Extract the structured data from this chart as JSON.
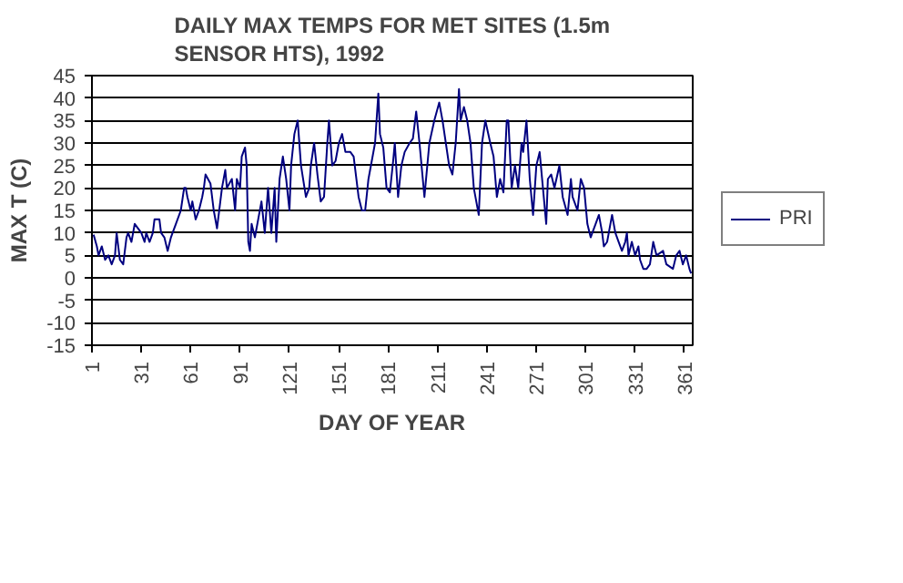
{
  "chart_data": {
    "type": "line",
    "title": "DAILY MAX TEMPS FOR MET SITES (1.5m\nSENSOR HTS), 1992",
    "xlabel": "DAY OF YEAR",
    "ylabel": "MAX T (C)",
    "xlim": [
      1,
      366
    ],
    "xticks": [
      1,
      31,
      61,
      91,
      121,
      151,
      181,
      211,
      241,
      271,
      301,
      331,
      361
    ],
    "ylim": [
      -15,
      45
    ],
    "yticks": [
      -15,
      -10,
      -5,
      0,
      5,
      10,
      15,
      20,
      25,
      30,
      35,
      40,
      45
    ],
    "grid": "y",
    "legend": "right",
    "marker": "none",
    "line_style": "solid",
    "series": [
      {
        "name": "PRI",
        "color": "#000080",
        "x": [
          2,
          4,
          5,
          7,
          9,
          11,
          13,
          15,
          16,
          18,
          20,
          22,
          23,
          25,
          27,
          31,
          33,
          34,
          36,
          38,
          39,
          42,
          43,
          45,
          47,
          49,
          50,
          52,
          55,
          57,
          58,
          59,
          61,
          62,
          64,
          66,
          68,
          69,
          70,
          73,
          75,
          77,
          80,
          82,
          83,
          86,
          88,
          89,
          91,
          92,
          94,
          95,
          96,
          97,
          98,
          100,
          102,
          104,
          106,
          108,
          110,
          112,
          113,
          115,
          117,
          119,
          121,
          122,
          124,
          126,
          128,
          131,
          133,
          134,
          136,
          138,
          140,
          142,
          144,
          145,
          147,
          149,
          151,
          153,
          155,
          158,
          160,
          163,
          165,
          167,
          169,
          173,
          175,
          176,
          178,
          180,
          182,
          184,
          185,
          187,
          189,
          191,
          194,
          196,
          198,
          200,
          203,
          206,
          209,
          212,
          214,
          216,
          218,
          220,
          222,
          224,
          225,
          227,
          229,
          231,
          233,
          236,
          238,
          240,
          243,
          245,
          247,
          249,
          251,
          253,
          254,
          256,
          258,
          260,
          262,
          263,
          265,
          267,
          269,
          271,
          273,
          275,
          277,
          278,
          280,
          282,
          285,
          287,
          290,
          292,
          293,
          296,
          298,
          300,
          302,
          304,
          305,
          307,
          309,
          311,
          312,
          314,
          317,
          319,
          321,
          323,
          325,
          326,
          327,
          329,
          331,
          333,
          334,
          336,
          338,
          340,
          342,
          344,
          348,
          350,
          354,
          356,
          358,
          360,
          362,
          364,
          365
        ],
        "values": [
          9.6,
          7,
          5,
          7,
          4,
          5,
          3,
          5,
          10,
          4,
          3,
          9,
          10,
          8,
          12,
          10,
          8,
          10,
          8,
          10,
          13,
          13,
          10,
          9,
          6,
          9,
          10,
          12,
          15,
          20,
          20,
          18,
          15,
          17,
          13,
          15,
          18,
          20,
          23,
          21,
          15,
          11,
          20,
          24,
          20,
          22,
          15,
          22,
          20,
          27,
          29,
          25,
          8,
          6,
          12,
          9,
          13,
          17,
          10,
          20,
          10,
          20,
          8,
          22,
          27,
          22,
          15,
          25,
          32,
          35,
          25,
          18,
          20,
          25,
          30,
          23,
          17,
          18,
          30,
          35,
          25,
          26,
          30,
          32,
          28,
          28,
          27,
          18,
          15,
          15,
          22,
          30,
          41,
          32,
          29,
          20,
          19,
          26,
          30,
          18,
          25,
          28,
          30,
          31,
          37,
          30,
          18,
          30,
          35,
          39,
          35,
          30,
          25,
          23,
          30,
          42,
          35,
          38,
          35,
          30,
          20,
          14,
          30,
          35,
          30,
          27,
          18,
          22,
          19,
          35,
          35,
          20,
          25,
          20,
          30,
          28,
          35,
          22,
          14,
          25,
          28,
          20,
          12,
          22,
          23,
          20,
          25,
          18,
          14,
          22,
          18,
          15,
          22,
          20,
          12,
          9,
          10,
          12,
          14,
          10,
          7,
          8,
          14,
          10,
          8,
          6,
          8,
          10,
          5,
          8,
          5,
          7,
          4,
          2,
          2,
          3,
          8,
          5,
          6,
          3,
          2,
          5,
          6,
          3,
          5,
          2,
          1
        ]
      }
    ]
  }
}
